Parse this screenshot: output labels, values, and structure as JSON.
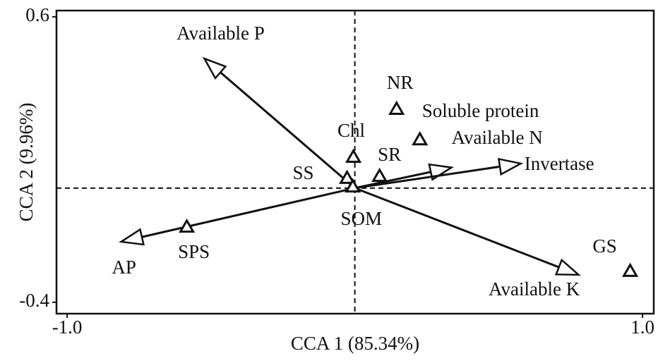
{
  "chart_data": {
    "type": "biplot",
    "xlabel": "CCA 1 (85.34%)",
    "ylabel": "CCA 2 (9.96%)",
    "xlim": [
      -1.037,
      1.039
    ],
    "ylim": [
      -0.44,
      0.622
    ],
    "xticks": [
      {
        "value": -1,
        "label": "-1.0"
      },
      {
        "value": 1,
        "label": "1.0"
      }
    ],
    "yticks": [
      -0.4,
      0.6
    ],
    "arrows": {
      "names": [
        "Available P",
        "Available N",
        "Invertase",
        "Available K",
        "AP"
      ],
      "x": [
        -0.523,
        0.336,
        0.577,
        0.778,
        -0.812
      ],
      "y": [
        0.454,
        0.072,
        0.086,
        -0.304,
        -0.188
      ]
    },
    "points": {
      "names": [
        "NR",
        "Soluble protein",
        "Chl",
        "SR",
        "SS",
        "SOM",
        "SPS",
        "GS"
      ],
      "x": [
        0.145,
        0.226,
        -0.005,
        0.086,
        -0.027,
        -0.007,
        -0.584,
        0.957
      ],
      "y": [
        0.277,
        0.17,
        0.109,
        0.042,
        0.035,
        0.005,
        -0.136,
        -0.291
      ]
    }
  }
}
